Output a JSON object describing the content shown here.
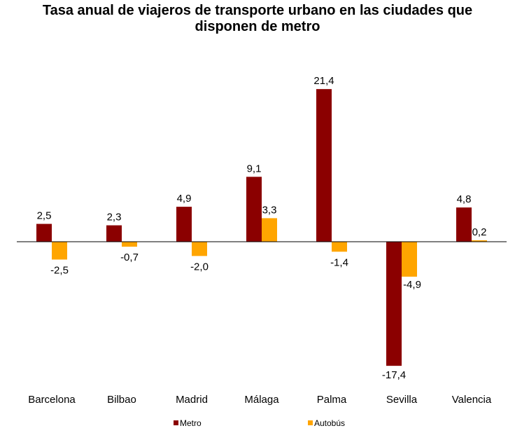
{
  "chart_data": {
    "type": "bar",
    "title_line1": "Tasa anual de viajeros de transporte urbano en las ciudades que",
    "title_line2": "disponen de metro",
    "categories": [
      "Barcelona",
      "Bilbao",
      "Madrid",
      "Málaga",
      "Palma",
      "Sevilla",
      "Valencia"
    ],
    "series": [
      {
        "name": "Metro",
        "values": [
          2.5,
          2.3,
          4.9,
          9.1,
          21.4,
          -17.4,
          4.8
        ],
        "labels": [
          "2,5",
          "2,3",
          "4,9",
          "9,1",
          "21,4",
          "-17,4",
          "4,8"
        ],
        "color": "#8b0000"
      },
      {
        "name": "Autobús",
        "values": [
          -2.5,
          -0.7,
          -2.0,
          3.3,
          -1.4,
          -4.9,
          0.2
        ],
        "labels": [
          "-2,5",
          "-0,7",
          "-2,0",
          "3,3",
          "-1,4",
          "-4,9",
          "0,2"
        ],
        "color": "#ffa500"
      }
    ],
    "ylim": [
      -20,
      23
    ],
    "grid": false,
    "legend_position": "bottom"
  }
}
